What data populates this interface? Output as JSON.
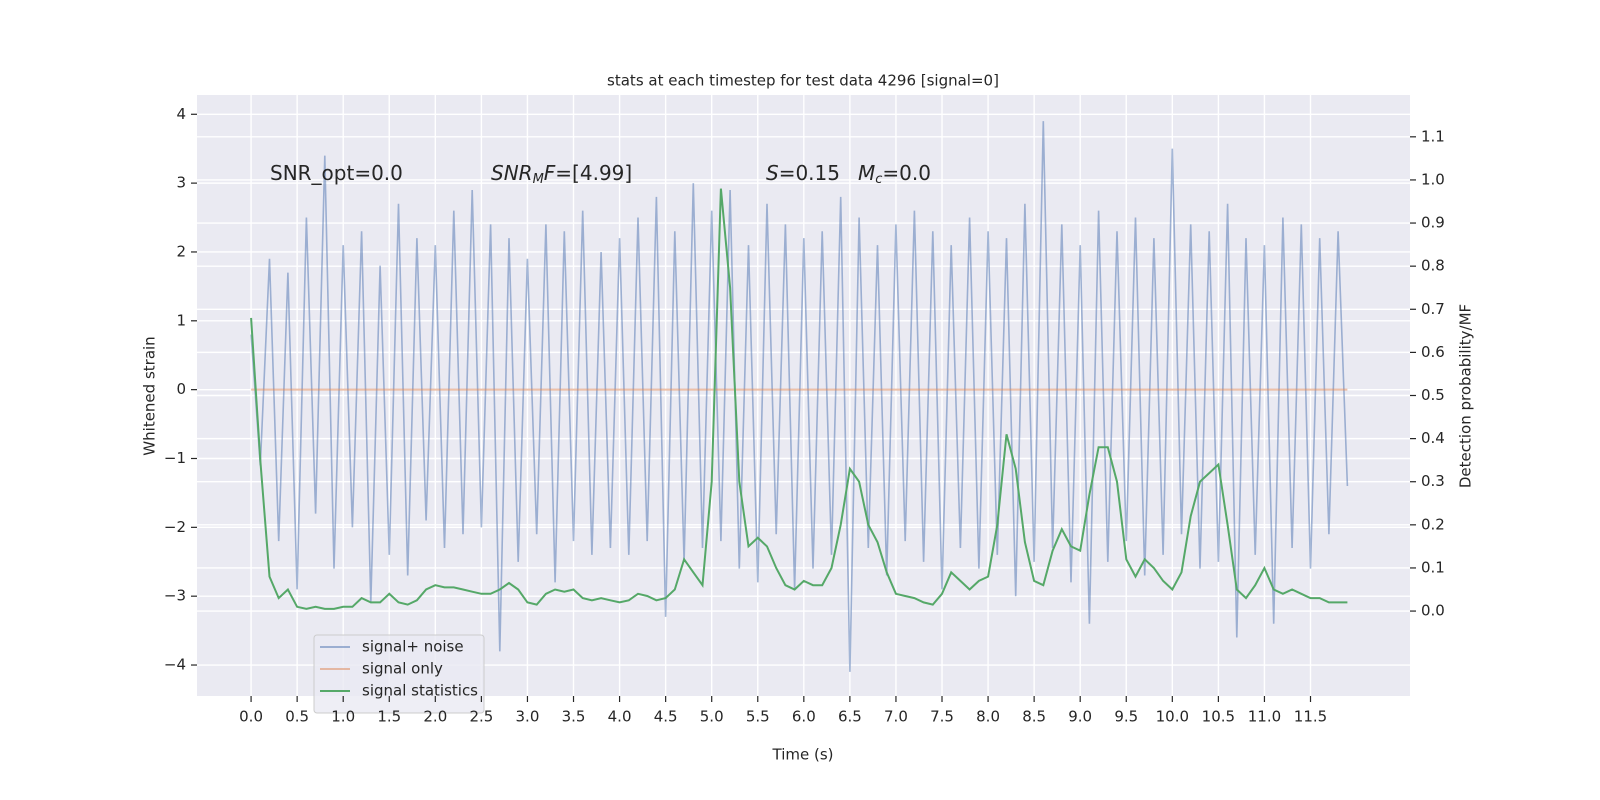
{
  "chart_data": {
    "type": "line",
    "title": "stats at each timestep for test data 4296 [signal=0]",
    "xlabel": "Time (s)",
    "ylabel": "Whitened strain",
    "y2label": "Detection probability/MF",
    "annotations": [
      {
        "parts": [
          "SNR_opt=0.0"
        ]
      },
      {
        "parts": [
          "SNR",
          "M",
          "F",
          "=[4.99]"
        ]
      },
      {
        "parts": [
          "S",
          "=0.15"
        ]
      },
      {
        "parts": [
          "M",
          "c",
          "=0.0"
        ]
      }
    ],
    "x": [
      0,
      0.1,
      0.2,
      0.3,
      0.4,
      0.5,
      0.6,
      0.7,
      0.8,
      0.9,
      1,
      1.1,
      1.2,
      1.3,
      1.4,
      1.5,
      1.6,
      1.7,
      1.8,
      1.9,
      2,
      2.1,
      2.2,
      2.3,
      2.4,
      2.5,
      2.6,
      2.7,
      2.8,
      2.9,
      3,
      3.1,
      3.2,
      3.3,
      3.4,
      3.5,
      3.6,
      3.7,
      3.8,
      3.9,
      4,
      4.1,
      4.2,
      4.3,
      4.4,
      4.5,
      4.6,
      4.7,
      4.8,
      4.9,
      5,
      5.1,
      5.2,
      5.3,
      5.4,
      5.5,
      5.6,
      5.7,
      5.8,
      5.9,
      6,
      6.1,
      6.2,
      6.3,
      6.4,
      6.5,
      6.6,
      6.7,
      6.8,
      6.9,
      7,
      7.1,
      7.2,
      7.3,
      7.4,
      7.5,
      7.6,
      7.7,
      7.8,
      7.9,
      8,
      8.1,
      8.2,
      8.3,
      8.4,
      8.5,
      8.6,
      8.7,
      8.8,
      8.9,
      9,
      9.1,
      9.2,
      9.3,
      9.4,
      9.5,
      9.6,
      9.7,
      9.8,
      9.9,
      10,
      10.1,
      10.2,
      10.3,
      10.4,
      10.5,
      10.6,
      10.7,
      10.8,
      10.9,
      11,
      11.1,
      11.2,
      11.3,
      11.4,
      11.5,
      11.6,
      11.7,
      11.8,
      11.9
    ],
    "series": [
      {
        "name": "signal+ noise",
        "color": "#4c72b0",
        "values": [
          0.8,
          -1.1,
          1.9,
          -2.2,
          1.7,
          -2.9,
          2.5,
          -1.8,
          3.4,
          -2.6,
          2.1,
          -2.0,
          2.3,
          -3.1,
          1.8,
          -2.4,
          2.7,
          -2.7,
          2.2,
          -1.9,
          2.1,
          -2.3,
          2.6,
          -2.1,
          2.9,
          -2.0,
          2.4,
          -3.8,
          2.2,
          -2.5,
          1.9,
          -2.1,
          2.4,
          -2.8,
          2.3,
          -2.2,
          2.6,
          -2.4,
          2.0,
          -2.3,
          2.2,
          -2.4,
          2.5,
          -2.2,
          2.8,
          -3.3,
          2.3,
          -2.5,
          3.0,
          -2.3,
          2.6,
          -2.2,
          2.9,
          -2.6,
          2.1,
          -2.8,
          2.7,
          -2.1,
          2.4,
          -2.9,
          2.2,
          -2.6,
          2.3,
          -2.4,
          2.8,
          -4.1,
          2.5,
          -2.3,
          2.1,
          -2.7,
          2.4,
          -2.2,
          2.6,
          -2.5,
          2.3,
          -2.9,
          2.1,
          -2.3,
          2.5,
          -2.6,
          2.3,
          -2.4,
          2.2,
          -3.0,
          2.7,
          -2.5,
          3.9,
          -2.3,
          2.4,
          -2.8,
          2.1,
          -3.4,
          2.6,
          -2.5,
          2.3,
          -2.2,
          2.5,
          -2.7,
          2.2,
          -2.4,
          3.5,
          -2.1,
          2.4,
          -2.6,
          2.3,
          -2.5,
          2.7,
          -3.6,
          2.2,
          -2.4,
          2.1,
          -3.4,
          2.5,
          -2.3,
          2.4,
          -2.6,
          2.2,
          -2.1,
          2.3,
          -1.4
        ]
      },
      {
        "name": "signal only",
        "color": "#dd8452",
        "values": [
          0,
          0,
          0,
          0,
          0,
          0,
          0,
          0,
          0,
          0,
          0,
          0,
          0,
          0,
          0,
          0,
          0,
          0,
          0,
          0,
          0,
          0,
          0,
          0,
          0,
          0,
          0,
          0,
          0,
          0,
          0,
          0,
          0,
          0,
          0,
          0,
          0,
          0,
          0,
          0,
          0,
          0,
          0,
          0,
          0,
          0,
          0,
          0,
          0,
          0,
          0,
          0,
          0,
          0,
          0,
          0,
          0,
          0,
          0,
          0,
          0,
          0,
          0,
          0,
          0,
          0,
          0,
          0,
          0,
          0,
          0,
          0,
          0,
          0,
          0,
          0,
          0,
          0,
          0,
          0,
          0,
          0,
          0,
          0,
          0,
          0,
          0,
          0,
          0,
          0,
          0,
          0,
          0,
          0,
          0,
          0,
          0,
          0,
          0,
          0,
          0,
          0,
          0,
          0,
          0,
          0,
          0,
          0,
          0,
          0,
          0,
          0,
          0,
          0,
          0,
          0,
          0,
          0,
          0,
          0
        ]
      },
      {
        "name": "signal statistics",
        "color": "#55a868",
        "axis": "y2",
        "values": [
          0.68,
          0.35,
          0.08,
          0.03,
          0.05,
          0.01,
          0.005,
          0.01,
          0.005,
          0.005,
          0.01,
          0.01,
          0.03,
          0.02,
          0.02,
          0.04,
          0.02,
          0.015,
          0.025,
          0.05,
          0.06,
          0.055,
          0.055,
          0.05,
          0.045,
          0.04,
          0.04,
          0.05,
          0.065,
          0.05,
          0.02,
          0.015,
          0.04,
          0.05,
          0.045,
          0.05,
          0.03,
          0.025,
          0.03,
          0.025,
          0.02,
          0.025,
          0.04,
          0.035,
          0.025,
          0.03,
          0.05,
          0.12,
          0.09,
          0.06,
          0.3,
          0.98,
          0.75,
          0.3,
          0.15,
          0.17,
          0.15,
          0.1,
          0.06,
          0.05,
          0.07,
          0.06,
          0.06,
          0.1,
          0.2,
          0.33,
          0.3,
          0.2,
          0.16,
          0.09,
          0.04,
          0.035,
          0.03,
          0.02,
          0.015,
          0.04,
          0.09,
          0.07,
          0.05,
          0.07,
          0.08,
          0.2,
          0.41,
          0.33,
          0.16,
          0.07,
          0.06,
          0.14,
          0.19,
          0.15,
          0.14,
          0.27,
          0.38,
          0.38,
          0.3,
          0.12,
          0.08,
          0.12,
          0.1,
          0.07,
          0.05,
          0.09,
          0.22,
          0.3,
          0.32,
          0.34,
          0.2,
          0.05,
          0.03,
          0.06,
          0.1,
          0.05,
          0.04,
          0.05,
          0.04,
          0.03,
          0.03,
          0.02,
          0.02,
          0.02
        ]
      }
    ],
    "xlim": [
      -0.587,
      12.58
    ],
    "ylim": [
      -4.45,
      4.28
    ],
    "y2lim": [
      -0.197,
      1.197
    ],
    "xticks": [
      {
        "value": 0,
        "label": "0.0"
      },
      {
        "value": 0.5,
        "label": "0.5"
      },
      {
        "value": 1,
        "label": "1.0"
      },
      {
        "value": 1.5,
        "label": "1.5"
      },
      {
        "value": 2,
        "label": "2.0"
      },
      {
        "value": 2.5,
        "label": "2.5"
      },
      {
        "value": 3,
        "label": "3.0"
      },
      {
        "value": 3.5,
        "label": "3.5"
      },
      {
        "value": 4,
        "label": "4.0"
      },
      {
        "value": 4.5,
        "label": "4.5"
      },
      {
        "value": 5,
        "label": "5.0"
      },
      {
        "value": 5.5,
        "label": "5.5"
      },
      {
        "value": 6,
        "label": "6.0"
      },
      {
        "value": 6.5,
        "label": "6.5"
      },
      {
        "value": 7,
        "label": "7.0"
      },
      {
        "value": 7.5,
        "label": "7.5"
      },
      {
        "value": 8,
        "label": "8.0"
      },
      {
        "value": 8.5,
        "label": "8.5"
      },
      {
        "value": 9,
        "label": "9.0"
      },
      {
        "value": 9.5,
        "label": "9.5"
      },
      {
        "value": 10,
        "label": "10.0"
      },
      {
        "value": 10.5,
        "label": "10.5"
      },
      {
        "value": 11,
        "label": "11.0"
      },
      {
        "value": 11.5,
        "label": "11.5"
      }
    ],
    "yticks": [
      {
        "value": -4,
        "label": "−4"
      },
      {
        "value": -3,
        "label": "−3"
      },
      {
        "value": -2,
        "label": "−2"
      },
      {
        "value": -1,
        "label": "−1"
      },
      0,
      1,
      2,
      3,
      4
    ],
    "y2ticks": [
      {
        "value": 0,
        "label": "0.0"
      },
      {
        "value": 0.1,
        "label": "0.1"
      },
      {
        "value": 0.2,
        "label": "0.2"
      },
      {
        "value": 0.3,
        "label": "0.3"
      },
      {
        "value": 0.4,
        "label": "0.4"
      },
      {
        "value": 0.5,
        "label": "0.5"
      },
      {
        "value": 0.6,
        "label": "0.6"
      },
      {
        "value": 0.7,
        "label": "0.7"
      },
      {
        "value": 0.8,
        "label": "0.8"
      },
      {
        "value": 0.9,
        "label": "0.9"
      },
      {
        "value": 1,
        "label": "1.0"
      },
      {
        "value": 1.1,
        "label": "1.1"
      }
    ],
    "grid": true,
    "legend": "lower left"
  }
}
